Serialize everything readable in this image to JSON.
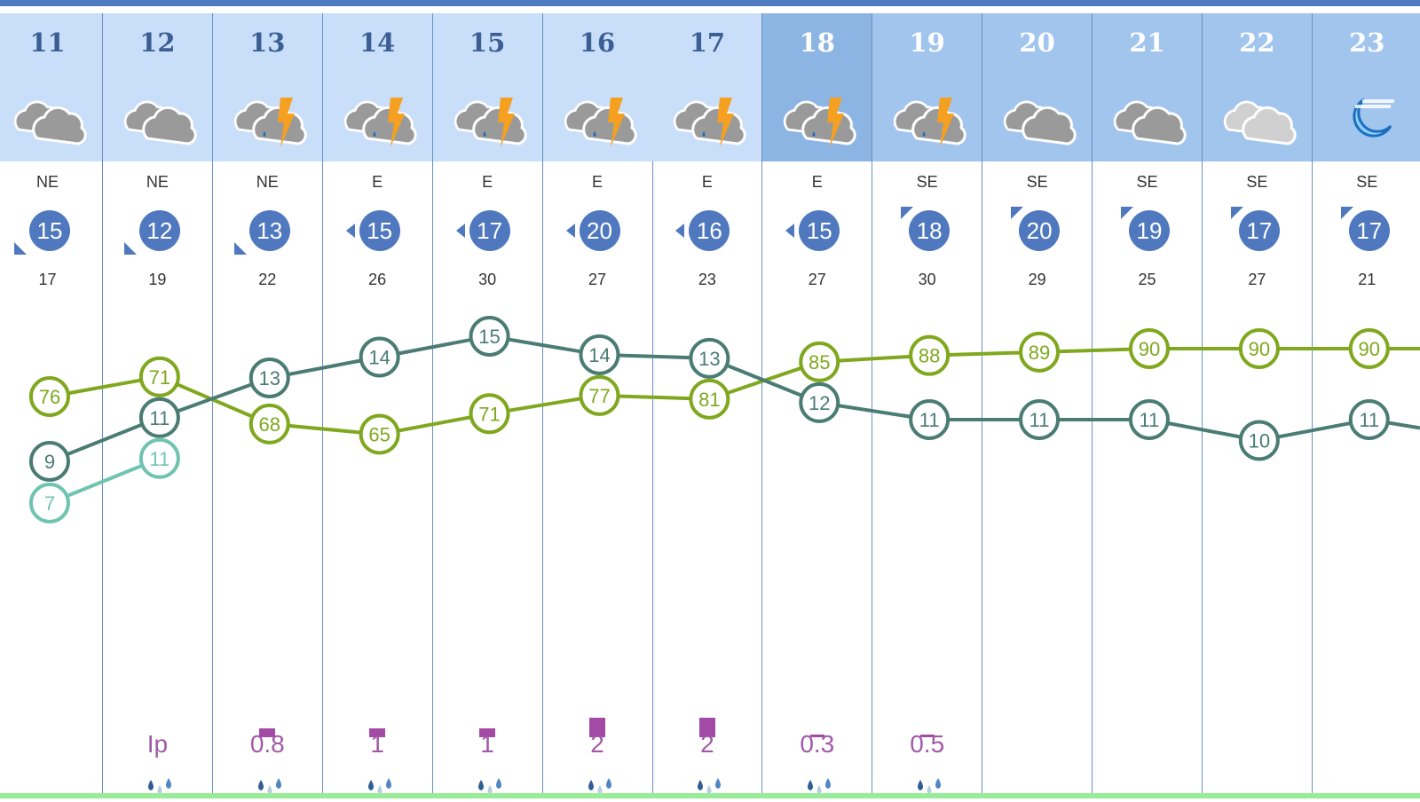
{
  "days": [
    {
      "date": "11",
      "icon": "cloudy",
      "dir": "NE",
      "wind": "15",
      "gust": "17",
      "arrow": "bl",
      "precip": "",
      "band": "light"
    },
    {
      "date": "12",
      "icon": "cloudy",
      "dir": "NE",
      "wind": "12",
      "gust": "19",
      "arrow": "bl",
      "precip": "Ip",
      "band": "light"
    },
    {
      "date": "13",
      "icon": "thunderstorm",
      "dir": "NE",
      "wind": "13",
      "gust": "22",
      "arrow": "bl",
      "precip": "0.8",
      "band": "light"
    },
    {
      "date": "14",
      "icon": "thunderstorm",
      "dir": "E",
      "wind": "15",
      "gust": "26",
      "arrow": "l",
      "precip": "1",
      "band": "light"
    },
    {
      "date": "15",
      "icon": "thunderstorm",
      "dir": "E",
      "wind": "17",
      "gust": "30",
      "arrow": "l",
      "precip": "1",
      "band": "light"
    },
    {
      "date": "16",
      "icon": "thunderstorm",
      "dir": "E",
      "wind": "20",
      "gust": "27",
      "arrow": "l",
      "precip": "2",
      "band": "light"
    },
    {
      "date": "17",
      "icon": "thunderstorm",
      "dir": "E",
      "wind": "16",
      "gust": "23",
      "arrow": "l",
      "precip": "2",
      "band": "light"
    },
    {
      "date": "18",
      "icon": "thunderstorm",
      "dir": "E",
      "wind": "15",
      "gust": "27",
      "arrow": "l",
      "precip": "0.3",
      "band": "dark"
    },
    {
      "date": "19",
      "icon": "thunderstorm",
      "dir": "SE",
      "wind": "18",
      "gust": "30",
      "arrow": "tl",
      "precip": "0.5",
      "band": "mid"
    },
    {
      "date": "20",
      "icon": "cloudy",
      "dir": "SE",
      "wind": "20",
      "gust": "29",
      "arrow": "tl",
      "precip": "",
      "band": "mid"
    },
    {
      "date": "21",
      "icon": "cloudy",
      "dir": "SE",
      "wind": "19",
      "gust": "25",
      "arrow": "tl",
      "precip": "",
      "band": "mid"
    },
    {
      "date": "22",
      "icon": "cloudy-light",
      "dir": "SE",
      "wind": "17",
      "gust": "27",
      "arrow": "tl",
      "precip": "",
      "band": "mid"
    },
    {
      "date": "23",
      "icon": "moon-haze",
      "dir": "SE",
      "wind": "17",
      "gust": "21",
      "arrow": "tl",
      "precip": "",
      "band": "mid"
    }
  ],
  "chart_data": {
    "type": "line",
    "categories": [
      "11",
      "12",
      "13",
      "14",
      "15",
      "16",
      "17",
      "18",
      "19",
      "20",
      "21",
      "22",
      "23"
    ],
    "series": [
      {
        "key": "humidity",
        "color": "#7fa81e",
        "values": [
          76,
          71,
          68,
          65,
          71,
          77,
          81,
          85,
          88,
          89,
          90,
          90,
          90
        ]
      },
      {
        "key": "temperature",
        "color": "#4a7c74",
        "values": [
          9,
          11,
          13,
          14,
          15,
          14,
          13,
          12,
          11,
          11,
          11,
          10,
          11
        ]
      },
      {
        "key": "apparent",
        "color": "#6fc4b0",
        "values": [
          7,
          11,
          null,
          null,
          null,
          null,
          null,
          null,
          null,
          null,
          null,
          null,
          null
        ]
      }
    ],
    "precip_bars": [
      0,
      0,
      0.8,
      1,
      1,
      2,
      2,
      0.3,
      0.5,
      0,
      0,
      0,
      0
    ]
  },
  "colors": {
    "wind": "#4f78be",
    "precip": "#a24aa5",
    "header_light": "#c9def8",
    "header_mid": "#a2c5ee",
    "header_dark": "#8db5e4"
  }
}
